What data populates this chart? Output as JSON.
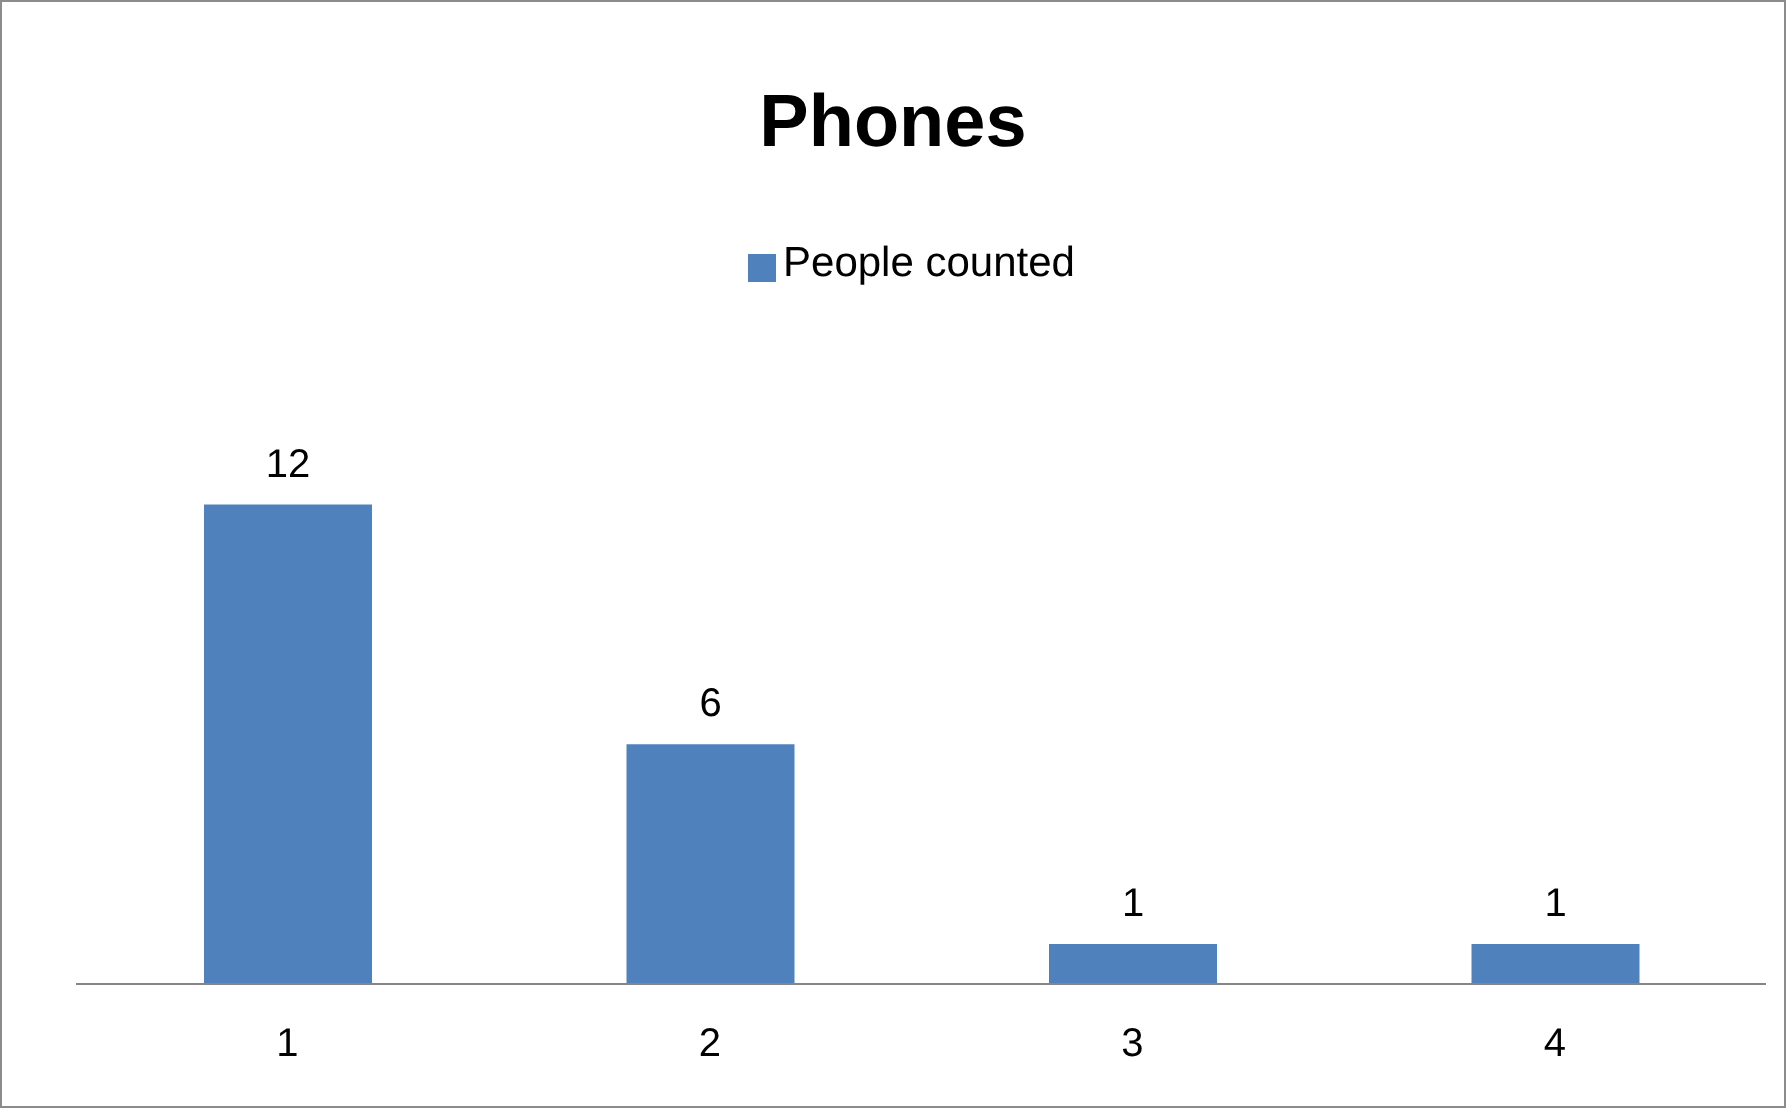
{
  "chart_data": {
    "type": "bar",
    "title": "Phones",
    "categories": [
      "1",
      "2",
      "3",
      "4"
    ],
    "series": [
      {
        "name": "People counted",
        "color": "#4f81bd",
        "values": [
          12,
          6,
          1,
          1
        ]
      }
    ],
    "data_labels": true,
    "legend": "top",
    "grid": false
  }
}
